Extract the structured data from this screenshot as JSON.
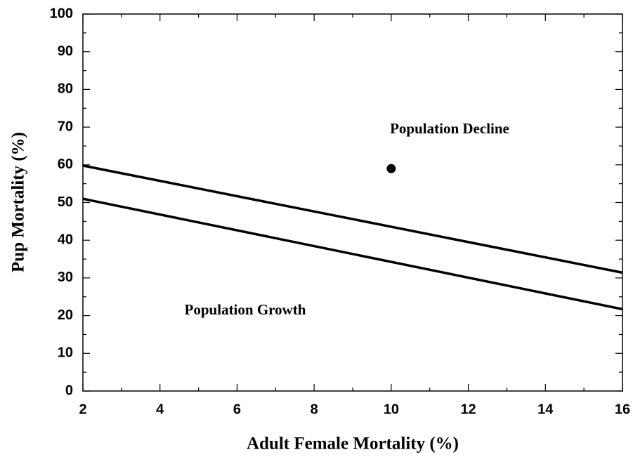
{
  "chart_data": {
    "type": "line",
    "x_label": "Adult Female Mortality (%)",
    "y_label": "Pup Mortality (%)",
    "x": [
      2,
      16
    ],
    "series": [
      {
        "color": "#000000",
        "values": [
          59.8,
          31.4
        ]
      },
      {
        "color": "#000000",
        "values": [
          51,
          21.7
        ]
      }
    ],
    "points": {
      "x": [
        10
      ],
      "values": [
        59
      ],
      "color": "#000000"
    },
    "annotations": [
      "Population Decline",
      "Population Growth"
    ],
    "xlim": [
      2,
      16
    ],
    "xticks": [
      2,
      4,
      6,
      8,
      10,
      12,
      14,
      16
    ],
    "ylim": [
      0,
      100
    ],
    "yticks": [
      0,
      10,
      20,
      30,
      40,
      50,
      60,
      70,
      80,
      90,
      100
    ],
    "grid": false
  }
}
